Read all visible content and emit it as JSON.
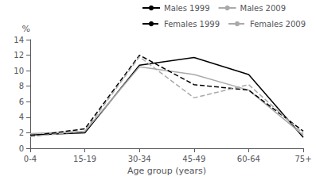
{
  "chart_data": {
    "type": "line",
    "xlabel": "Age group (years)",
    "ylabel": "%",
    "categories": [
      "0-4",
      "15-19",
      "30-34",
      "45-49",
      "60-64",
      "75+"
    ],
    "series": [
      {
        "name": "Males 1999",
        "color": "#000000",
        "line_style": "solid",
        "values": [
          1.7,
          2.0,
          10.7,
          11.7,
          9.5,
          1.4
        ]
      },
      {
        "name": "Males 2009",
        "color": "#aaaaaa",
        "line_style": "solid",
        "values": [
          1.9,
          2.2,
          10.5,
          9.5,
          7.5,
          1.7
        ]
      },
      {
        "name": "Females 1999",
        "color": "#000000",
        "line_style": "dashed",
        "values": [
          1.6,
          2.5,
          12.0,
          8.2,
          7.5,
          2.2
        ]
      },
      {
        "name": "Females 2009",
        "color": "#aaaaaa",
        "line_style": "dashed",
        "values": [
          1.5,
          2.2,
          11.8,
          6.5,
          8.2,
          1.9
        ]
      }
    ],
    "ylim": [
      0,
      14
    ],
    "yticks": [
      0,
      2,
      4,
      6,
      8,
      10,
      12,
      14
    ],
    "grid": false,
    "legend": "upper right"
  }
}
